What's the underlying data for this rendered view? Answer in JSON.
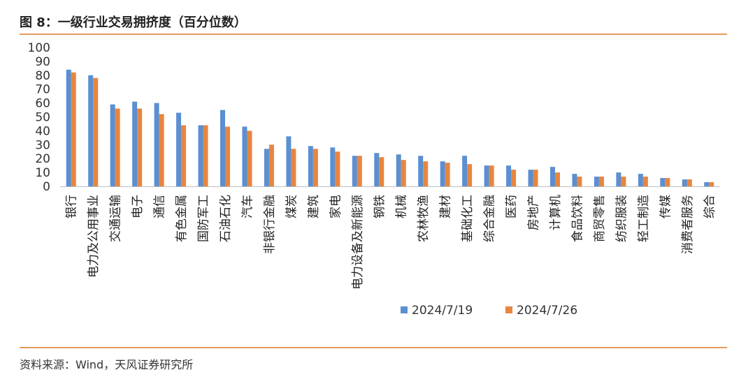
{
  "header": {
    "title": "图 8：一级行业交易拥挤度（百分位数）"
  },
  "footer": {
    "source": "资料来源：Wind，天风证券研究所"
  },
  "colors": {
    "series1": "#5b8fd1",
    "series2": "#e8853f",
    "rule": "#e39a5a"
  },
  "chart_data": {
    "type": "bar",
    "title": "图 8：一级行业交易拥挤度（百分位数）",
    "xlabel": "",
    "ylabel": "",
    "ylim": [
      0,
      100
    ],
    "yticks": [
      0,
      10,
      20,
      30,
      40,
      50,
      60,
      70,
      80,
      90,
      100
    ],
    "grid": false,
    "legend_position": "bottom",
    "categories": [
      "银行",
      "电力及公用事业",
      "交通运输",
      "电子",
      "通信",
      "有色金属",
      "国防军工",
      "石油石化",
      "汽车",
      "非银行金融",
      "煤炭",
      "建筑",
      "家电",
      "电力设备及新能源",
      "钢铁",
      "机械",
      "农林牧渔",
      "建材",
      "基础化工",
      "综合金融",
      "医药",
      "房地产",
      "计算机",
      "食品饮料",
      "商贸零售",
      "纺织服装",
      "轻工制造",
      "传媒",
      "消费者服务",
      "综合"
    ],
    "series": [
      {
        "name": "2024/7/19",
        "color": "#5b8fd1",
        "values": [
          84,
          80,
          59,
          61,
          60,
          53,
          44,
          55,
          43,
          27,
          36,
          29,
          28,
          22,
          24,
          23,
          22,
          18,
          22,
          15,
          15,
          12,
          14,
          9,
          7,
          10,
          9,
          6,
          5,
          3
        ]
      },
      {
        "name": "2024/7/26",
        "color": "#e8853f",
        "values": [
          82,
          78,
          56,
          56,
          52,
          44,
          44,
          43,
          40,
          30,
          27,
          27,
          25,
          22,
          21,
          19,
          18,
          17,
          16,
          15,
          12,
          12,
          10,
          7,
          7,
          7,
          7,
          6,
          5,
          3
        ]
      }
    ]
  }
}
